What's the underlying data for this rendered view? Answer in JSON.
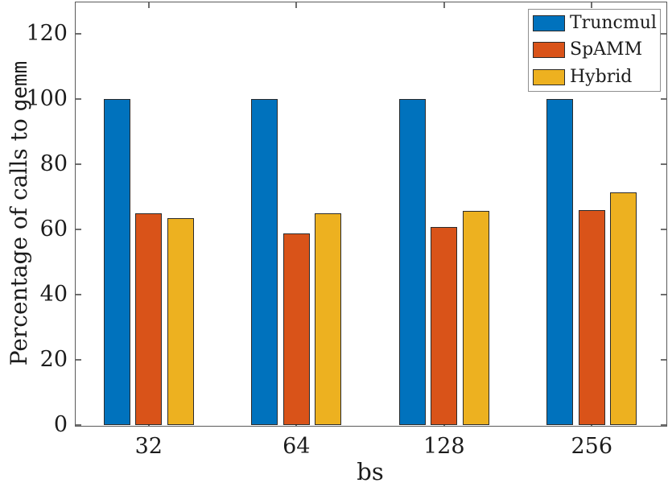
{
  "chart_data": {
    "type": "bar",
    "title": "",
    "categories": [
      "32",
      "64",
      "128",
      "256"
    ],
    "series": [
      {
        "name": "Truncmul",
        "color": "#0072BD",
        "values": [
          100,
          100,
          100,
          100
        ]
      },
      {
        "name": "SpAMM",
        "color": "#D95319",
        "values": [
          64.9,
          58.8,
          60.9,
          66.0
        ]
      },
      {
        "name": "Hybrid",
        "color": "#EDB120",
        "values": [
          63.4,
          65.0,
          65.8,
          71.5
        ]
      }
    ],
    "xlabel": "bs",
    "ylabel_prefix": "Percentage of calls to ",
    "ylabel_code": "gemm",
    "ylim": [
      0,
      130
    ],
    "yticks": [
      0,
      20,
      40,
      60,
      80,
      100,
      120
    ],
    "grid": false,
    "legend_position": "top-right"
  },
  "colors": {
    "background": "#ffffff",
    "axis_box": "#5a5a5a",
    "tick": "#6e6e6e",
    "text": "#1c1c1c",
    "bar_edge": "#2b2b2b",
    "legend_border": "#8f8f8f"
  }
}
